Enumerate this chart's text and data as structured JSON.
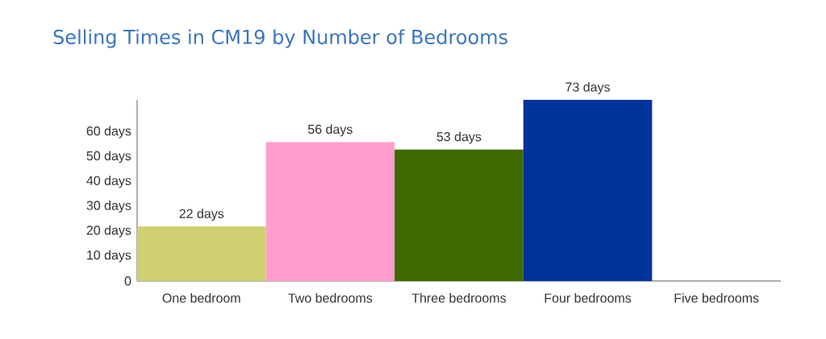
{
  "chart_data": {
    "type": "bar",
    "title": "Selling Times in CM19 by Number of Bedrooms",
    "categories": [
      "One bedroom",
      "Two bedrooms",
      "Three bedrooms",
      "Four bedrooms",
      "Five bedrooms"
    ],
    "values": [
      22,
      56,
      53,
      73,
      null
    ],
    "colors": [
      "#cfd070",
      "#ff9ecd",
      "#3d6a00",
      "#00339c",
      "#ffffff"
    ],
    "value_labels": [
      "22 days",
      "56 days",
      "53 days",
      "73 days",
      null
    ],
    "ylim": [
      0,
      73
    ],
    "yticks": [
      0,
      {
        "value": 10,
        "label": "10 days"
      },
      {
        "value": 20,
        "label": "20 days"
      },
      {
        "value": 30,
        "label": "30 days"
      },
      {
        "value": 40,
        "label": "40 days"
      },
      {
        "value": 50,
        "label": "50 days"
      },
      {
        "value": 60,
        "label": "60 days"
      }
    ]
  }
}
